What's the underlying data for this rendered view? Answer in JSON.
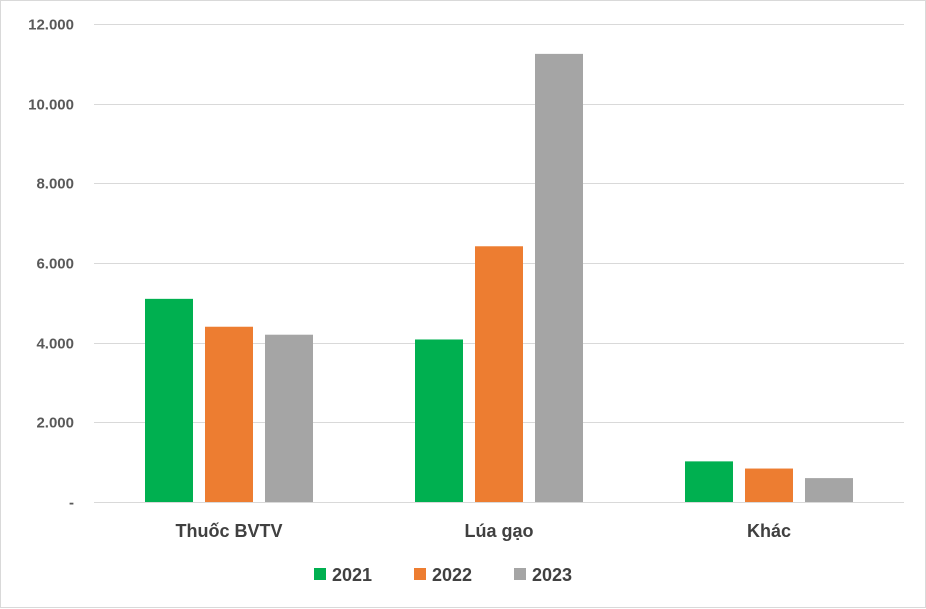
{
  "chart_data": {
    "type": "bar",
    "categories": [
      "Thuốc BVTV",
      "Lúa gạo",
      "Khác"
    ],
    "series": [
      {
        "name": "2021",
        "color": "#00b050",
        "values": [
          5100,
          4080,
          1020
        ]
      },
      {
        "name": "2022",
        "color": "#ed7d31",
        "values": [
          4400,
          6420,
          840
        ]
      },
      {
        "name": "2023",
        "color": "#a5a5a5",
        "values": [
          4200,
          11250,
          600
        ]
      }
    ],
    "ylim": [
      0,
      12000
    ],
    "yticks": [
      0,
      2000,
      4000,
      6000,
      8000,
      10000,
      12000
    ],
    "ytick_labels": [
      "-",
      "2.000",
      "4.000",
      "6.000",
      "8.000",
      "10.000",
      "12.000"
    ],
    "grid": true,
    "legend_position": "bottom",
    "title": "",
    "xlabel": "",
    "ylabel": ""
  }
}
